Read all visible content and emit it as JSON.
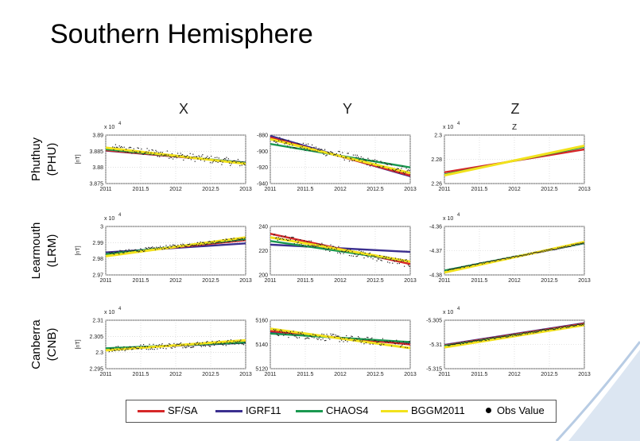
{
  "slide": {
    "title": "Southern Hemisphere"
  },
  "component_labels": [
    "X",
    "Y",
    "Z"
  ],
  "stations": [
    {
      "name": "Phuthuy",
      "code": "(PHU)"
    },
    {
      "name": "Learmouth",
      "code": "(LRM)"
    },
    {
      "name": "Canberra",
      "code": "(CNB)"
    }
  ],
  "legend": [
    {
      "label": "SF/SA",
      "color": "#d62728"
    },
    {
      "label": "IGRF11",
      "color": "#3b2f8f"
    },
    {
      "label": "CHAOS4",
      "color": "#1a9850"
    },
    {
      "label": "BGGM2011",
      "color": "#f2e21c"
    },
    {
      "label": "Obs Value",
      "color": "#000000",
      "marker": "dot"
    }
  ],
  "colors": {
    "SF/SA": "#d62728",
    "IGRF11": "#3b2f8f",
    "CHAOS4": "#1a9850",
    "BGGM2011": "#f2e21c",
    "obs": "#222222",
    "accent": "#8aaad0"
  },
  "chart_data": [
    {
      "type": "line",
      "station": "Phuthuy (PHU)",
      "component": "X",
      "ylabel": "[nT]",
      "exponent_label": "x 10",
      "exponent": "4",
      "xlim": [
        2011,
        2013
      ],
      "x_ticks": [
        "2011",
        "2011.5",
        "2012",
        "2012.5",
        "2013"
      ],
      "ylim": [
        3.875,
        3.89
      ],
      "y_ticks": [
        "3.875",
        "3.88",
        "3.885",
        "3.89"
      ],
      "series": [
        {
          "name": "SF/SA",
          "x": [
            2011,
            2013
          ],
          "y": [
            3.8853,
            3.8814
          ]
        },
        {
          "name": "IGRF11",
          "x": [
            2011,
            2013
          ],
          "y": [
            3.8852,
            3.8815
          ]
        },
        {
          "name": "CHAOS4",
          "x": [
            2011,
            2013
          ],
          "y": [
            3.8856,
            3.8814
          ]
        },
        {
          "name": "BGGM2011",
          "x": [
            2011,
            2013
          ],
          "y": [
            3.8861,
            3.8811
          ]
        }
      ],
      "obs": {
        "x_range": [
          2011.1,
          2013
        ],
        "trend": [
          3.8862,
          3.8812
        ],
        "noise": 0.0012
      }
    },
    {
      "type": "line",
      "station": "Phuthuy (PHU)",
      "component": "Y",
      "xlim": [
        2011,
        2013
      ],
      "x_ticks": [
        "2011",
        "2011.5",
        "2012",
        "2012.5",
        "2013"
      ],
      "ylim": [
        -940,
        -880
      ],
      "y_ticks": [
        "-940",
        "-920",
        "-900",
        "-880"
      ],
      "series": [
        {
          "name": "SF/SA",
          "x": [
            2011,
            2013
          ],
          "y": [
            -883,
            -930
          ]
        },
        {
          "name": "IGRF11",
          "x": [
            2011,
            2013
          ],
          "y": [
            -881,
            -931
          ]
        },
        {
          "name": "CHAOS4",
          "x": [
            2011,
            2013
          ],
          "y": [
            -891,
            -920
          ]
        },
        {
          "name": "BGGM2011",
          "x": [
            2011,
            2013
          ],
          "y": [
            -885,
            -927
          ]
        }
      ],
      "obs": {
        "x_range": [
          2011.05,
          2013
        ],
        "trend": [
          -885,
          -925
        ],
        "noise": 5
      }
    },
    {
      "type": "line",
      "station": "Phuthuy (PHU)",
      "component": "Z",
      "title": "Z",
      "exponent_label": "x 10",
      "exponent": "4",
      "xlim": [
        2011,
        2013
      ],
      "x_ticks": [
        "2011",
        "2011.5",
        "2012",
        "2012.5",
        "2013"
      ],
      "ylim": [
        2.26,
        2.3
      ],
      "y_ticks": [
        "2.26",
        "2.28",
        "2.3"
      ],
      "series": [
        {
          "name": "SF/SA",
          "x": [
            2011,
            2013
          ],
          "y": [
            2.2693,
            2.2882
          ]
        },
        {
          "name": "IGRF11",
          "x": [
            2011,
            2013
          ],
          "y": [
            2.2672,
            2.2908
          ]
        },
        {
          "name": "CHAOS4",
          "x": [
            2011,
            2013
          ],
          "y": [
            2.2675,
            2.2902
          ]
        },
        {
          "name": "BGGM2011",
          "x": [
            2011,
            2013
          ],
          "y": [
            2.2668,
            2.2912
          ]
        }
      ]
    },
    {
      "type": "line",
      "station": "Learmouth (LRM)",
      "component": "X",
      "ylabel": "[nT]",
      "exponent_label": "x 10",
      "exponent": "4",
      "xlim": [
        2011,
        2013
      ],
      "x_ticks": [
        "2011",
        "2011.5",
        "2012",
        "2012.5",
        "2013"
      ],
      "ylim": [
        2.97,
        3.0
      ],
      "y_ticks": [
        "2.97",
        "2.98",
        "2.99",
        "3"
      ],
      "series": [
        {
          "name": "SF/SA",
          "x": [
            2011,
            2013
          ],
          "y": [
            2.9826,
            2.9915
          ]
        },
        {
          "name": "IGRF11",
          "x": [
            2011,
            2013
          ],
          "y": [
            2.9839,
            2.9895
          ]
        },
        {
          "name": "CHAOS4",
          "x": [
            2011,
            2013
          ],
          "y": [
            2.9829,
            2.9922
          ]
        },
        {
          "name": "BGGM2011",
          "x": [
            2011,
            2013
          ],
          "y": [
            2.9816,
            2.9932
          ]
        }
      ],
      "obs": {
        "x_range": [
          2011.05,
          2013
        ],
        "trend": [
          2.9831,
          2.9925
        ],
        "noise": 0.0011
      }
    },
    {
      "type": "line",
      "station": "Learmouth (LRM)",
      "component": "Y",
      "xlim": [
        2011,
        2013
      ],
      "x_ticks": [
        "2011",
        "2011.5",
        "2012",
        "2012.5",
        "2013"
      ],
      "ylim": [
        200,
        240
      ],
      "y_ticks": [
        "200",
        "220",
        "240"
      ],
      "series": [
        {
          "name": "SF/SA",
          "x": [
            2011,
            2013
          ],
          "y": [
            234,
            209
          ]
        },
        {
          "name": "IGRF11",
          "x": [
            2011,
            2013
          ],
          "y": [
            225,
            219
          ]
        },
        {
          "name": "CHAOS4",
          "x": [
            2011,
            2013
          ],
          "y": [
            228,
            211
          ]
        },
        {
          "name": "BGGM2011",
          "x": [
            2011,
            2013
          ],
          "y": [
            231,
            211
          ]
        }
      ],
      "obs": {
        "x_range": [
          2011.05,
          2013
        ],
        "trend": [
          232,
          209
        ],
        "noise": 3
      }
    },
    {
      "type": "line",
      "station": "Learmouth (LRM)",
      "component": "Z",
      "exponent_label": "x 10",
      "exponent": "4",
      "xlim": [
        2011,
        2013
      ],
      "x_ticks": [
        "2011",
        "2011.5",
        "2012",
        "2012.5",
        "2013"
      ],
      "ylim": [
        -4.38,
        -4.36
      ],
      "y_ticks": [
        "-4.38",
        "-4.37",
        "-4.36"
      ],
      "series": [
        {
          "name": "SF/SA",
          "x": [
            2011,
            2013
          ],
          "y": [
            -4.3786,
            -4.3667
          ]
        },
        {
          "name": "IGRF11",
          "x": [
            2011,
            2013
          ],
          "y": [
            -4.3784,
            -4.3669
          ]
        },
        {
          "name": "CHAOS4",
          "x": [
            2011,
            2013
          ],
          "y": [
            -4.3782,
            -4.3668
          ]
        },
        {
          "name": "BGGM2011",
          "x": [
            2011,
            2013
          ],
          "y": [
            -4.379,
            -4.3664
          ]
        }
      ],
      "obs": {
        "x_range": [
          2011.05,
          2013
        ],
        "trend": [
          -4.3782,
          -4.3669
        ],
        "noise": 0.0003
      }
    },
    {
      "type": "line",
      "station": "Canberra (CNB)",
      "component": "X",
      "ylabel": "[nT]",
      "exponent_label": "x 10",
      "exponent": "4",
      "xlim": [
        2011,
        2013
      ],
      "x_ticks": [
        "2011",
        "2011.5",
        "2012",
        "2012.5",
        "2013"
      ],
      "ylim": [
        2.295,
        2.31
      ],
      "y_ticks": [
        "2.295",
        "2.3",
        "2.305",
        "2.31"
      ],
      "series": [
        {
          "name": "SF/SA",
          "x": [
            2011,
            2013
          ],
          "y": [
            2.3011,
            2.3032
          ]
        },
        {
          "name": "IGRF11",
          "x": [
            2011,
            2013
          ],
          "y": [
            2.3012,
            2.303
          ]
        },
        {
          "name": "CHAOS4",
          "x": [
            2011,
            2013
          ],
          "y": [
            2.3013,
            2.3031
          ]
        },
        {
          "name": "BGGM2011",
          "x": [
            2011,
            2013
          ],
          "y": [
            2.3007,
            2.3038
          ]
        }
      ],
      "obs": {
        "x_range": [
          2011.05,
          2013
        ],
        "trend": [
          2.3011,
          2.3033
        ],
        "noise": 0.0009
      }
    },
    {
      "type": "line",
      "station": "Canberra (CNB)",
      "component": "Y",
      "xlim": [
        2011,
        2013
      ],
      "x_ticks": [
        "2011",
        "2011.5",
        "2012",
        "2012.5",
        "2013"
      ],
      "ylim": [
        5120,
        5160
      ],
      "y_ticks": [
        "5120",
        "5140",
        "5160"
      ],
      "series": [
        {
          "name": "SF/SA",
          "x": [
            2011,
            2013
          ],
          "y": [
            5151,
            5140
          ]
        },
        {
          "name": "IGRF11",
          "x": [
            2011,
            2013
          ],
          "y": [
            5150,
            5141
          ]
        },
        {
          "name": "CHAOS4",
          "x": [
            2011,
            2013
          ],
          "y": [
            5149,
            5142
          ]
        },
        {
          "name": "BGGM2011",
          "x": [
            2011,
            2013
          ],
          "y": [
            5153,
            5137
          ]
        }
      ],
      "obs": {
        "x_range": [
          2011.05,
          2013
        ],
        "trend": [
          5150,
          5140
        ],
        "noise": 3
      }
    },
    {
      "type": "line",
      "station": "Canberra (CNB)",
      "component": "Z",
      "exponent_label": "x 10",
      "exponent": "4",
      "xlim": [
        2011,
        2013
      ],
      "x_ticks": [
        "2011",
        "2011.5",
        "2012",
        "2012.5",
        "2013"
      ],
      "ylim": [
        -5.315,
        -5.305
      ],
      "y_ticks": [
        "-5.315",
        "-5.31",
        "-5.305"
      ],
      "series": [
        {
          "name": "SF/SA",
          "x": [
            2011,
            2013
          ],
          "y": [
            -5.3102,
            -5.3057
          ]
        },
        {
          "name": "IGRF11",
          "x": [
            2011,
            2013
          ],
          "y": [
            -5.3101,
            -5.3056
          ]
        },
        {
          "name": "CHAOS4",
          "x": [
            2011,
            2013
          ],
          "y": [
            -5.3103,
            -5.3059
          ]
        },
        {
          "name": "BGGM2011",
          "x": [
            2011,
            2013
          ],
          "y": [
            -5.3106,
            -5.306
          ]
        }
      ],
      "obs": {
        "x_range": [
          2011.05,
          2013
        ],
        "trend": [
          -5.3103,
          -5.3058
        ],
        "noise": 0.0002
      }
    }
  ]
}
